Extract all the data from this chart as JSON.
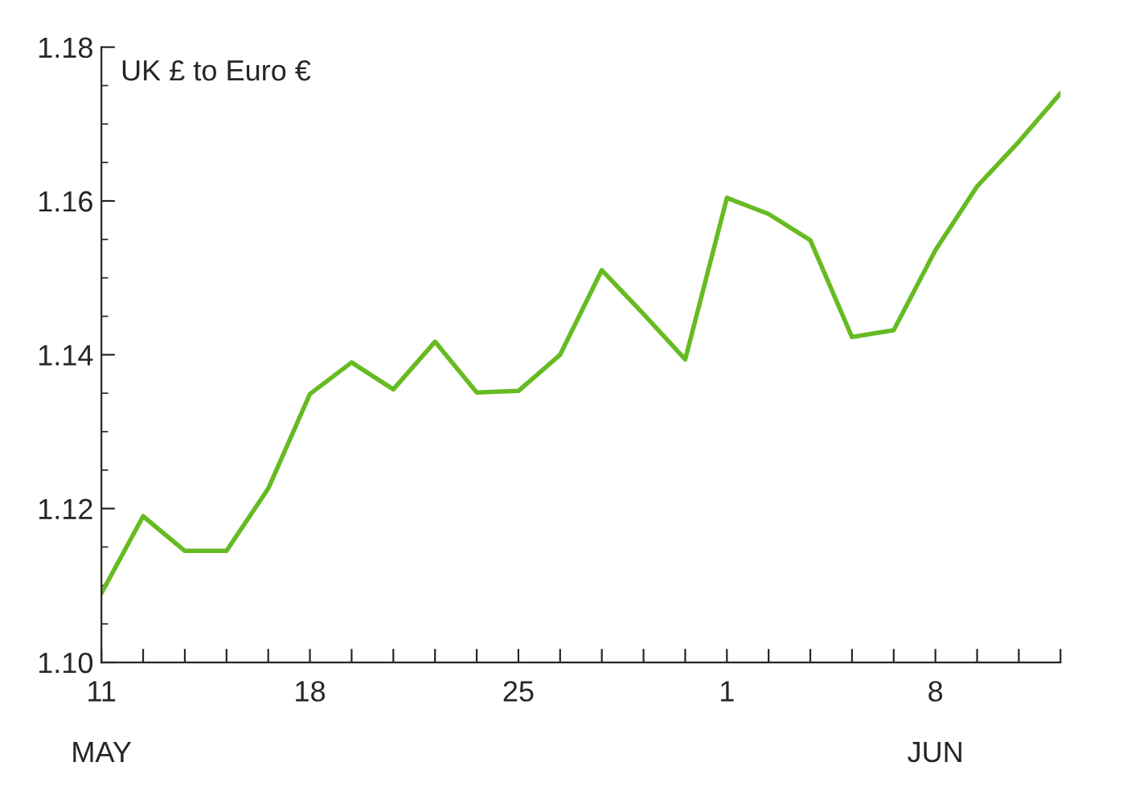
{
  "chart_data": {
    "type": "line",
    "title": "UK £ to Euro €",
    "categories": [
      "11\nMAY",
      null,
      null,
      null,
      null,
      "18",
      null,
      null,
      null,
      null,
      "25",
      null,
      null,
      null,
      null,
      "1",
      null,
      null,
      null,
      null,
      "8\nJUN",
      null,
      null,
      null
    ],
    "series": [
      {
        "color": "#66bb22",
        "values": [
          1.109,
          1.119,
          1.1145,
          1.1145,
          1.1226,
          1.1349,
          1.139,
          1.1355,
          1.1417,
          1.1351,
          1.1353,
          1.14,
          1.151,
          1.1453,
          1.1394,
          1.1604,
          1.1583,
          1.1549,
          1.1423,
          1.1432,
          1.1536,
          1.1619,
          1.1677,
          1.174
        ]
      }
    ],
    "ylim": [
      1.1,
      1.18
    ],
    "yticks": [
      {
        "value": 1.1,
        "label": "1.10"
      },
      {
        "value": 1.12,
        "label": "1.12"
      },
      {
        "value": 1.14,
        "label": "1.14"
      },
      {
        "value": 1.16,
        "label": "1.16"
      },
      {
        "value": 1.18,
        "label": "1.18"
      }
    ],
    "grid": false,
    "legend": false,
    "marker": "none",
    "line_style": "solid"
  }
}
